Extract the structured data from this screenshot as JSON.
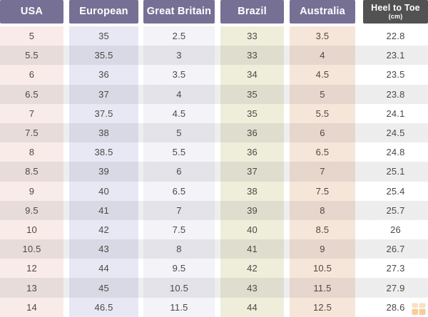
{
  "chart_data": {
    "type": "table",
    "columns": [
      {
        "id": "usa",
        "label": "USA"
      },
      {
        "id": "european",
        "label": "European"
      },
      {
        "id": "great-britain",
        "label": "Great Britain"
      },
      {
        "id": "brazil",
        "label": "Brazil"
      },
      {
        "id": "australia",
        "label": "Australia"
      },
      {
        "id": "heel-to-toe",
        "label": "Heel to Toe",
        "sublabel": "(cm)"
      }
    ],
    "rows": [
      [
        "5",
        "35",
        "2.5",
        "33",
        "3.5",
        "22.8"
      ],
      [
        "5.5",
        "35.5",
        "3",
        "33",
        "4",
        "23.1"
      ],
      [
        "6",
        "36",
        "3.5",
        "34",
        "4.5",
        "23.5"
      ],
      [
        "6.5",
        "37",
        "4",
        "35",
        "5",
        "23.8"
      ],
      [
        "7",
        "37.5",
        "4.5",
        "35",
        "5.5",
        "24.1"
      ],
      [
        "7.5",
        "38",
        "5",
        "36",
        "6",
        "24.5"
      ],
      [
        "8",
        "38.5",
        "5.5",
        "36",
        "6.5",
        "24.8"
      ],
      [
        "8.5",
        "39",
        "6",
        "37",
        "7",
        "25.1"
      ],
      [
        "9",
        "40",
        "6.5",
        "38",
        "7.5",
        "25.4"
      ],
      [
        "9.5",
        "41",
        "7",
        "39",
        "8",
        "25.7"
      ],
      [
        "10",
        "42",
        "7.5",
        "40",
        "8.5",
        "26"
      ],
      [
        "10.5",
        "43",
        "8",
        "41",
        "9",
        "26.7"
      ],
      [
        "12",
        "44",
        "9.5",
        "42",
        "10.5",
        "27.3"
      ],
      [
        "13",
        "45",
        "10.5",
        "43",
        "11.5",
        "27.9"
      ],
      [
        "14",
        "46.5",
        "11.5",
        "44",
        "12.5",
        "28.6"
      ]
    ],
    "layout": {
      "legend": "none",
      "grid": "off",
      "striped_rows": true
    }
  },
  "colors": {
    "header_purple": "#777095",
    "header_dark_gray": "#525252",
    "header_text": "#ffffff",
    "cell_text": "#4c4845",
    "col_usa": "#f9ece8",
    "col_european": "#e8e8f4",
    "col_great_britain": "#f3f3f8",
    "col_brazil": "#efeedb",
    "col_australia": "#f6e5d9",
    "col_heel_to_toe": "#ffffff",
    "stripe_overlay": "rgba(90,88,100,0.105)",
    "watermark_orange": "#efa648"
  },
  "icons": {
    "watermark": "grid-logo-icon"
  }
}
